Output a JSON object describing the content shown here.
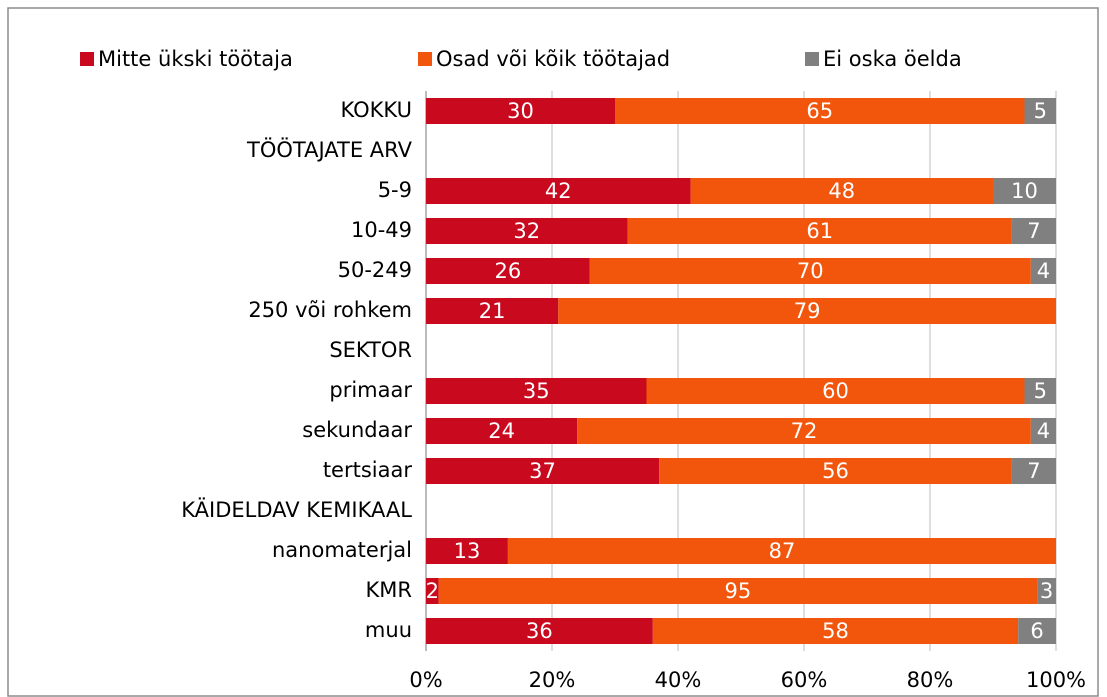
{
  "chart_data": {
    "type": "stacked_barh",
    "categories": [
      "KOKKU",
      "TÖÖTAJATE ARV",
      "5-9",
      "10-49",
      "50-249",
      "250 või rohkem",
      "SEKTOR",
      "primaar",
      "sekundaar",
      "tertsiaar",
      "KÄIDELDAV KEMIKAAL",
      "nanomaterjal",
      "KMR",
      "muu"
    ],
    "series": [
      {
        "name": "Mitte ükski töötaja",
        "color": "#c8091e",
        "values": [
          30,
          null,
          42,
          32,
          26,
          21,
          null,
          35,
          24,
          37,
          null,
          13,
          2,
          36
        ]
      },
      {
        "name": "Osad või kõik töötajad",
        "color": "#f2560c",
        "values": [
          65,
          null,
          48,
          61,
          70,
          79,
          null,
          60,
          72,
          56,
          null,
          87,
          95,
          58
        ]
      },
      {
        "name": "Ei oska öelda",
        "color": "#808080",
        "values": [
          5,
          null,
          10,
          7,
          4,
          null,
          null,
          5,
          4,
          7,
          null,
          null,
          3,
          6
        ]
      }
    ],
    "xlim": [
      0,
      100
    ],
    "xticks": [
      {
        "value": 0,
        "label": "0%"
      },
      {
        "value": 20,
        "label": "20%"
      },
      {
        "value": 40,
        "label": "40%"
      },
      {
        "value": 60,
        "label": "60%"
      },
      {
        "value": 80,
        "label": "80%"
      },
      {
        "value": 100,
        "label": "100%"
      }
    ],
    "grid": true,
    "legend": "top"
  }
}
